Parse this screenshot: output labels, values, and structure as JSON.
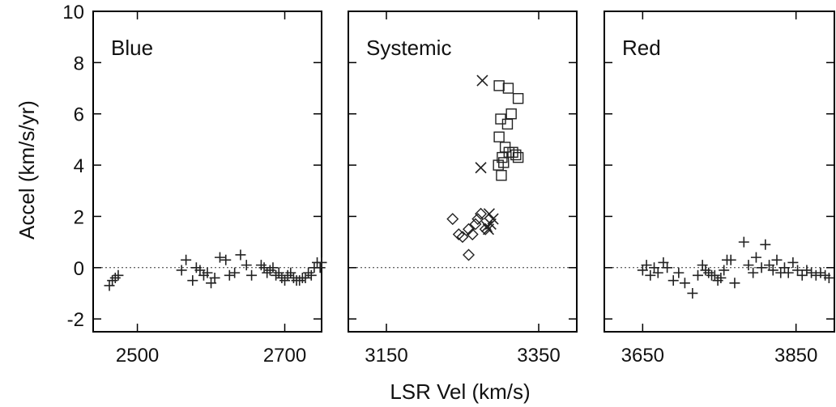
{
  "chart_data": {
    "type": "scatter",
    "ylabel": "Accel (km/s/yr)",
    "xlabel": "LSR Vel (km/s)",
    "ylim": [
      -2.5,
      10.0
    ],
    "yticks": [
      -2,
      0,
      2,
      4,
      6,
      8,
      10
    ],
    "reference_line_y": 0,
    "panels": [
      {
        "title": "Blue",
        "xlim": [
          2440,
          2750
        ],
        "xticks": [
          2500,
          2700
        ],
        "series": [
          {
            "marker": "plus",
            "points": [
              [
                2462,
                -0.7
              ],
              [
                2466,
                -0.5
              ],
              [
                2470,
                -0.4
              ],
              [
                2474,
                -0.3
              ],
              [
                2560,
                -0.1
              ],
              [
                2566,
                0.3
              ],
              [
                2575,
                -0.5
              ],
              [
                2580,
                0.0
              ],
              [
                2585,
                -0.1
              ],
              [
                2590,
                -0.3
              ],
              [
                2595,
                -0.2
              ],
              [
                2600,
                -0.6
              ],
              [
                2605,
                -0.4
              ],
              [
                2612,
                0.4
              ],
              [
                2620,
                0.3
              ],
              [
                2625,
                -0.3
              ],
              [
                2632,
                -0.2
              ],
              [
                2640,
                0.5
              ],
              [
                2648,
                0.1
              ],
              [
                2655,
                -0.3
              ],
              [
                2668,
                0.1
              ],
              [
                2672,
                0.0
              ],
              [
                2676,
                -0.2
              ],
              [
                2680,
                -0.1
              ],
              [
                2684,
                0.0
              ],
              [
                2688,
                -0.3
              ],
              [
                2692,
                -0.2
              ],
              [
                2696,
                -0.4
              ],
              [
                2700,
                -0.5
              ],
              [
                2704,
                -0.3
              ],
              [
                2708,
                -0.2
              ],
              [
                2712,
                -0.4
              ],
              [
                2716,
                -0.5
              ],
              [
                2720,
                -0.5
              ],
              [
                2724,
                -0.4
              ],
              [
                2728,
                -0.4
              ],
              [
                2732,
                -0.2
              ],
              [
                2736,
                -0.3
              ],
              [
                2740,
                0.0
              ],
              [
                2744,
                0.2
              ],
              [
                2748,
                0.0
              ],
              [
                2750,
                0.2
              ]
            ]
          }
        ]
      },
      {
        "title": "Systemic",
        "xlim": [
          3100,
          3400
        ],
        "xticks": [
          3150,
          3350
        ],
        "series": [
          {
            "marker": "square",
            "points": [
              [
                3298,
                7.1
              ],
              [
                3310,
                7.0
              ],
              [
                3323,
                6.6
              ],
              [
                3300,
                5.8
              ],
              [
                3309,
                5.6
              ],
              [
                3314,
                6.0
              ],
              [
                3298,
                5.1
              ],
              [
                3302,
                4.3
              ],
              [
                3306,
                4.7
              ],
              [
                3311,
                4.5
              ],
              [
                3304,
                4.1
              ],
              [
                3297,
                4.0
              ],
              [
                3301,
                3.6
              ],
              [
                3316,
                4.5
              ],
              [
                3320,
                4.4
              ],
              [
                3323,
                4.3
              ]
            ]
          },
          {
            "marker": "x",
            "points": [
              [
                3276,
                7.3
              ],
              [
                3274,
                3.9
              ],
              [
                3285,
                2.1
              ],
              [
                3290,
                1.9
              ],
              [
                3282,
                1.6
              ],
              [
                3284,
                1.5
              ],
              [
                3287,
                1.7
              ]
            ]
          },
          {
            "marker": "diamond",
            "points": [
              [
                3237,
                1.9
              ],
              [
                3245,
                1.3
              ],
              [
                3250,
                1.2
              ],
              [
                3258,
                1.5
              ],
              [
                3263,
                1.3
              ],
              [
                3267,
                1.7
              ],
              [
                3270,
                1.9
              ],
              [
                3274,
                2.1
              ],
              [
                3280,
                1.5
              ],
              [
                3258,
                0.5
              ]
            ]
          }
        ]
      },
      {
        "title": "Red",
        "xlim": [
          3600,
          3900
        ],
        "xticks": [
          3650,
          3850
        ],
        "series": [
          {
            "marker": "plus",
            "points": [
              [
                3650,
                -0.1
              ],
              [
                3655,
                0.1
              ],
              [
                3660,
                -0.3
              ],
              [
                3665,
                0.0
              ],
              [
                3670,
                -0.2
              ],
              [
                3677,
                0.2
              ],
              [
                3682,
                0.0
              ],
              [
                3690,
                -0.5
              ],
              [
                3697,
                -0.2
              ],
              [
                3705,
                -0.6
              ],
              [
                3715,
                -1.0
              ],
              [
                3722,
                -0.3
              ],
              [
                3728,
                0.1
              ],
              [
                3732,
                -0.1
              ],
              [
                3736,
                -0.2
              ],
              [
                3740,
                -0.3
              ],
              [
                3744,
                -0.3
              ],
              [
                3748,
                -0.5
              ],
              [
                3752,
                -0.4
              ],
              [
                3756,
                -0.1
              ],
              [
                3760,
                0.3
              ],
              [
                3765,
                0.3
              ],
              [
                3770,
                -0.6
              ],
              [
                3782,
                1.0
              ],
              [
                3788,
                0.1
              ],
              [
                3794,
                -0.2
              ],
              [
                3798,
                0.4
              ],
              [
                3805,
                0.0
              ],
              [
                3810,
                0.9
              ],
              [
                3815,
                0.1
              ],
              [
                3820,
                -0.1
              ],
              [
                3825,
                0.3
              ],
              [
                3830,
                -0.2
              ],
              [
                3835,
                0.0
              ],
              [
                3840,
                -0.2
              ],
              [
                3846,
                0.2
              ],
              [
                3852,
                -0.1
              ],
              [
                3858,
                -0.3
              ],
              [
                3864,
                -0.1
              ],
              [
                3870,
                -0.2
              ],
              [
                3876,
                -0.3
              ],
              [
                3882,
                -0.2
              ],
              [
                3888,
                -0.3
              ],
              [
                3893,
                -0.4
              ]
            ]
          }
        ]
      }
    ]
  }
}
